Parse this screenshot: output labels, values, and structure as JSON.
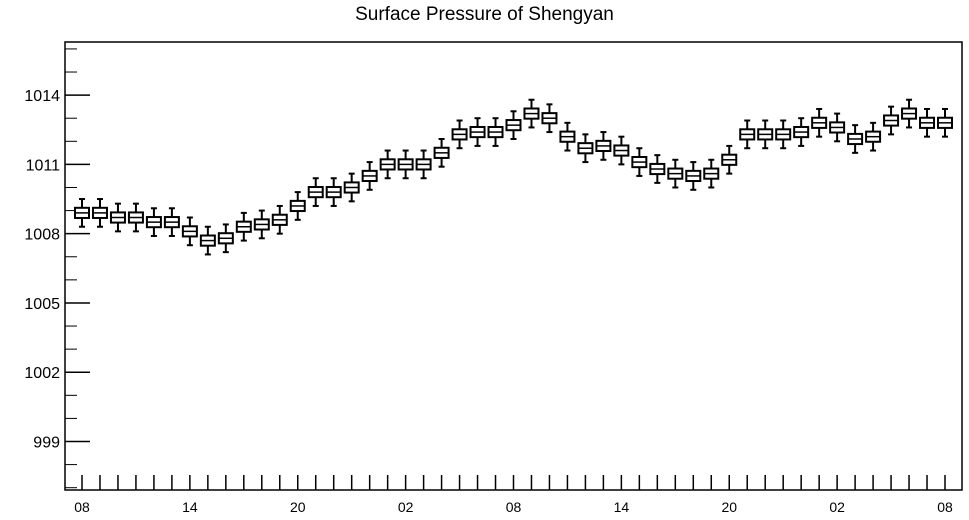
{
  "chart_data": {
    "type": "boxplot",
    "title": "Surface Pressure of Shengyan",
    "xlabel": "",
    "ylabel": "",
    "ylim": [
      996.9,
      1016.3
    ],
    "yticks": [
      999,
      1002,
      1005,
      1008,
      1011,
      1014
    ],
    "xtick_labels": [
      {
        "index": 0,
        "label": "08"
      },
      {
        "index": 6,
        "label": "14"
      },
      {
        "index": 12,
        "label": "20"
      },
      {
        "index": 18,
        "label": "02"
      },
      {
        "index": 24,
        "label": "08"
      },
      {
        "index": 30,
        "label": "14"
      },
      {
        "index": 36,
        "label": "20"
      },
      {
        "index": 42,
        "label": "02"
      },
      {
        "index": 48,
        "label": "08"
      }
    ],
    "grid": false,
    "values": [
      1008.9,
      1008.9,
      1008.7,
      1008.7,
      1008.5,
      1008.5,
      1008.1,
      1007.7,
      1007.8,
      1008.3,
      1008.4,
      1008.6,
      1009.2,
      1009.8,
      1009.8,
      1010.0,
      1010.5,
      1011.0,
      1011.0,
      1011.0,
      1011.5,
      1012.3,
      1012.4,
      1012.4,
      1012.7,
      1013.2,
      1013.0,
      1012.2,
      1011.7,
      1011.8,
      1011.6,
      1011.1,
      1010.8,
      1010.6,
      1010.5,
      1010.6,
      1011.2,
      1012.3,
      1012.3,
      1012.3,
      1012.4,
      1012.8,
      1012.6,
      1012.1,
      1012.2,
      1012.9,
      1013.2,
      1012.8,
      1012.8
    ],
    "box_half_height": 0.22,
    "whisker_half_range": 0.6
  }
}
